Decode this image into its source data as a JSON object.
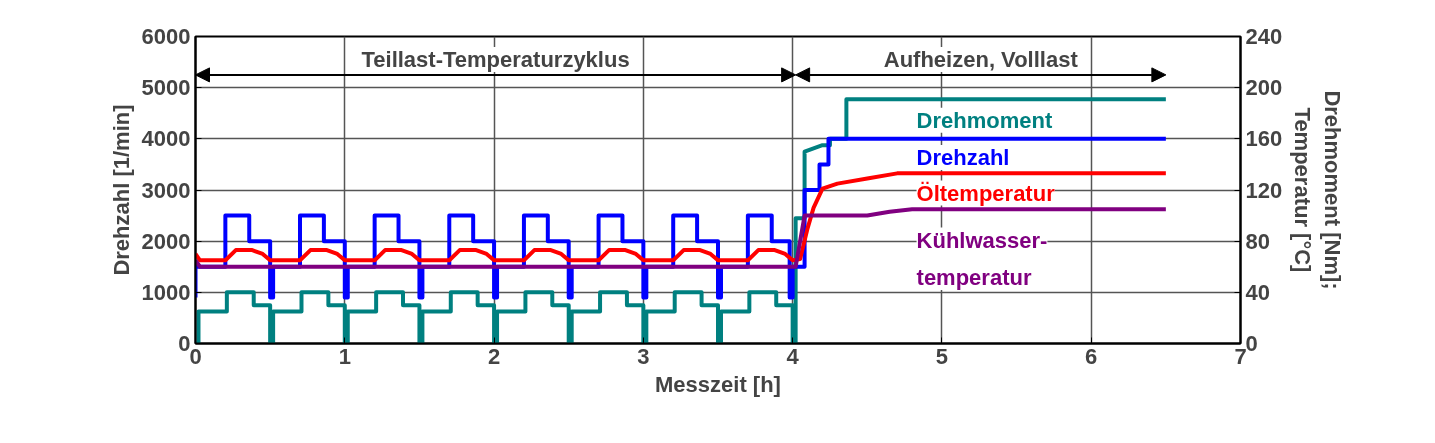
{
  "chart_data": {
    "type": "line",
    "xlabel": "Messzeit [h]",
    "ylabel": "Drehzahl [1/min]",
    "y2label": "Drehmoment [Nm];\nTemperatur [°C]",
    "xlim": [
      0,
      7
    ],
    "xticks": [
      0,
      1,
      2,
      3,
      4,
      5,
      6,
      7
    ],
    "ylim": [
      0,
      6000
    ],
    "yticks": [
      0,
      1000,
      2000,
      3000,
      4000,
      5000,
      6000
    ],
    "y2lim": [
      0,
      240
    ],
    "y2ticks": [
      0,
      40,
      80,
      120,
      160,
      200,
      240
    ],
    "grid": true,
    "marker": "none",
    "line_style": "solid",
    "annotations": [
      "Teillast-Temperaturzyklus",
      "Aufheizen, Volllast"
    ],
    "series": [
      {
        "name": "Drehmoment",
        "color": "#008080",
        "axis": "y2",
        "x": [
          0,
          0.02,
          0.02,
          0.21,
          0.21,
          0.39,
          0.39,
          0.5,
          0.5,
          0.52,
          0.52,
          0.71,
          0.71,
          0.89,
          0.89,
          1.0,
          1.0,
          1.02,
          1.02,
          1.21,
          1.21,
          1.39,
          1.39,
          1.5,
          1.5,
          1.52,
          1.52,
          1.71,
          1.71,
          1.89,
          1.89,
          2.0,
          2.0,
          2.02,
          2.02,
          2.21,
          2.21,
          2.39,
          2.39,
          2.5,
          2.5,
          2.52,
          2.52,
          2.71,
          2.71,
          2.89,
          2.89,
          3.0,
          3.0,
          3.02,
          3.02,
          3.21,
          3.21,
          3.39,
          3.39,
          3.5,
          3.5,
          3.52,
          3.52,
          3.71,
          3.71,
          3.89,
          3.89,
          4.0,
          4.0,
          4.02,
          4.02,
          4.08,
          4.08,
          4.2,
          4.25,
          4.25,
          4.36,
          4.36,
          6.5
        ],
        "values": [
          0,
          0,
          25,
          25,
          40,
          40,
          30,
          30,
          0,
          0,
          25,
          25,
          40,
          40,
          30,
          30,
          0,
          0,
          25,
          25,
          40,
          40,
          30,
          30,
          0,
          0,
          25,
          25,
          40,
          40,
          30,
          30,
          0,
          0,
          25,
          25,
          40,
          40,
          30,
          30,
          0,
          0,
          25,
          25,
          40,
          40,
          30,
          30,
          0,
          0,
          25,
          25,
          40,
          40,
          30,
          30,
          0,
          0,
          25,
          25,
          40,
          40,
          30,
          30,
          0,
          0,
          98,
          98,
          150,
          155,
          155,
          160,
          160,
          191,
          191
        ]
      },
      {
        "name": "Drehzahl",
        "color": "#0000ff",
        "x": [
          0,
          0,
          0.2,
          0.2,
          0.36,
          0.36,
          0.5,
          0.5,
          0.52,
          0.52,
          0.7,
          0.7,
          0.86,
          0.86,
          1.0,
          1.0,
          1.02,
          1.02,
          1.2,
          1.2,
          1.36,
          1.36,
          1.5,
          1.5,
          1.52,
          1.52,
          1.7,
          1.7,
          1.86,
          1.86,
          2.0,
          2.0,
          2.02,
          2.02,
          2.2,
          2.2,
          2.36,
          2.36,
          2.5,
          2.5,
          2.52,
          2.52,
          2.7,
          2.7,
          2.86,
          2.86,
          3.0,
          3.0,
          3.02,
          3.02,
          3.2,
          3.2,
          3.36,
          3.36,
          3.5,
          3.5,
          3.52,
          3.52,
          3.7,
          3.7,
          3.86,
          3.86,
          3.98,
          3.98,
          4.0,
          4.0,
          4.08,
          4.08,
          4.18,
          4.18,
          4.24,
          4.24,
          6.5
        ],
        "values": [
          900,
          1500,
          1500,
          2500,
          2500,
          2000,
          2000,
          900,
          900,
          1500,
          1500,
          2500,
          2500,
          2000,
          2000,
          900,
          900,
          1500,
          1500,
          2500,
          2500,
          2000,
          2000,
          900,
          900,
          1500,
          1500,
          2500,
          2500,
          2000,
          2000,
          900,
          900,
          1500,
          1500,
          2500,
          2500,
          2000,
          2000,
          900,
          900,
          1500,
          1500,
          2500,
          2500,
          2000,
          2000,
          900,
          900,
          1500,
          1500,
          2500,
          2500,
          2000,
          2000,
          900,
          900,
          1500,
          1500,
          2500,
          2500,
          2000,
          2000,
          900,
          900,
          1500,
          1500,
          3000,
          3000,
          3500,
          3500,
          4000,
          4000
        ]
      },
      {
        "name": "Öltemperatur",
        "color": "#ff0000",
        "axis": "y2",
        "x": [
          0,
          0.03,
          0.2,
          0.27,
          0.38,
          0.45,
          0.5,
          0.7,
          0.77,
          0.88,
          0.95,
          1.0,
          1.2,
          1.27,
          1.38,
          1.45,
          1.5,
          1.7,
          1.77,
          1.88,
          1.95,
          2.0,
          2.2,
          2.27,
          2.38,
          2.45,
          2.5,
          2.7,
          2.77,
          2.88,
          2.95,
          3.0,
          3.2,
          3.27,
          3.38,
          3.45,
          3.5,
          3.7,
          3.77,
          3.88,
          3.95,
          4.0,
          4.05,
          4.1,
          4.14,
          4.2,
          4.3,
          4.5,
          4.7,
          6.5
        ],
        "values": [
          70,
          65,
          65,
          73,
          73,
          70,
          65,
          65,
          73,
          73,
          70,
          65,
          65,
          73,
          73,
          70,
          65,
          65,
          73,
          73,
          70,
          65,
          65,
          73,
          73,
          70,
          65,
          65,
          73,
          73,
          70,
          65,
          65,
          73,
          73,
          70,
          65,
          65,
          73,
          73,
          70,
          65,
          66,
          90,
          106,
          121,
          125,
          129,
          133,
          133
        ]
      },
      {
        "name": "Kühlwasser-temperatur",
        "color": "#800080",
        "axis": "y2",
        "x": [
          0,
          0.03,
          4.02,
          4.08,
          4.5,
          4.65,
          4.8,
          6.5
        ],
        "values": [
          65,
          60,
          60,
          100,
          100,
          103,
          105,
          105
        ]
      }
    ]
  }
}
